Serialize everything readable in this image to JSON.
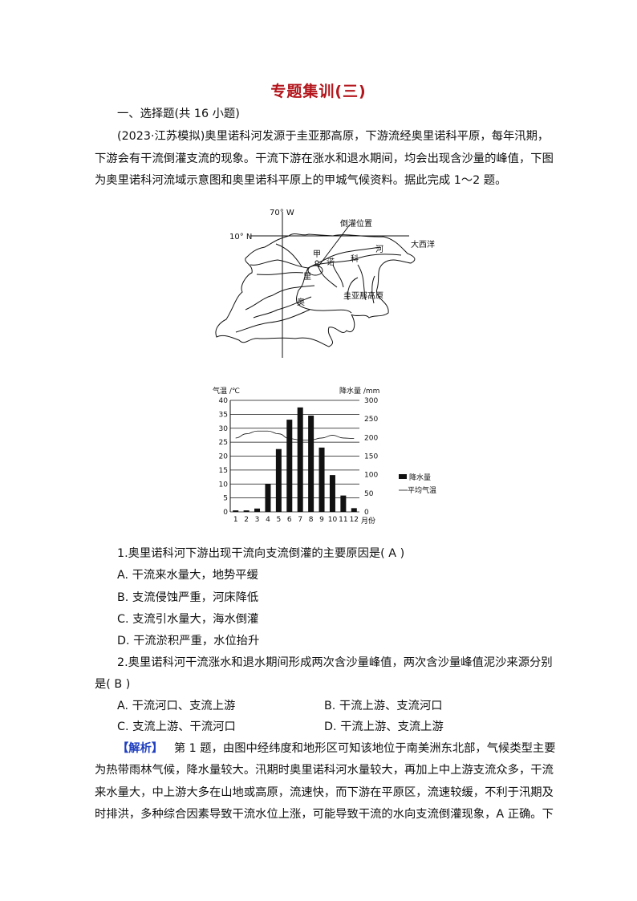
{
  "title": "专题集训(三)",
  "section": "一、选择题(共 16 小题)",
  "intro": [
    "(2023·江苏模拟)奥里诺科河发源于圭亚那高原，下游流经奥里诺科平原，每年汛期，",
    "下游会有干流倒灌支流的现象。干流下游在涨水和退水期间，均会出现含沙量的峰值，下图",
    "为奥里诺科河流域示意图和奥里诺科平原上的甲城气候资料。据此完成 1～2 题。"
  ],
  "map": {
    "lon_label": "70° W",
    "lat_label": "10° N",
    "backflow_label": "倒灌位置",
    "ocean_label": "大西洋",
    "city_label": "甲",
    "river_chars": [
      "奥",
      "里",
      "诺",
      "科",
      "河"
    ],
    "plateau_label": "圭亚那高原"
  },
  "chart_data": {
    "type": "bar",
    "left_axis_label": "气温 /℃",
    "right_axis_label": "降水量 /mm",
    "x_axis_label": "月份",
    "categories": [
      "1",
      "2",
      "3",
      "4",
      "5",
      "6",
      "7",
      "8",
      "9",
      "10",
      "11",
      "12"
    ],
    "left_ticks": [
      "40",
      "35",
      "30",
      "25",
      "20",
      "15",
      "10",
      "5",
      "0"
    ],
    "right_ticks": [
      "300",
      "250",
      "200",
      "150",
      "100",
      "50",
      "0"
    ],
    "ylim_left": [
      0,
      40
    ],
    "ylim_right": [
      0,
      300
    ],
    "grid": true,
    "legend_position": "right",
    "series": [
      {
        "name": "降水量",
        "kind": "bar",
        "axis": "right",
        "values": [
          4,
          4,
          9,
          75,
          169,
          248,
          281,
          259,
          173,
          99,
          44,
          10
        ]
      },
      {
        "name": "平均气温",
        "kind": "line",
        "axis": "left",
        "values": [
          26.5,
          28,
          29,
          29,
          28,
          26.3,
          25.8,
          25.8,
          26.5,
          27.5,
          26.5,
          26.3
        ]
      }
    ]
  },
  "q1": {
    "stem": "1.奥里诺科河下游出现干流向支流倒灌的主要原因是( A )",
    "options": [
      "A. 干流来水量大，地势平缓",
      "B. 支流侵蚀严重，河床降低",
      "C. 支流引水量大，海水倒灌",
      "D. 干流淤积严重，水位抬升"
    ]
  },
  "q2": {
    "stem1": "2.奥里诺科河干流涨水和退水期间形成两次含沙量峰值，两次含沙量峰值泥沙来源分别",
    "stem2": "是( B )",
    "options": [
      "A. 干流河口、支流上游",
      "B. 干流上游、支流河口",
      "C. 支流上游、干流河口",
      "D. 干流上游、支流上游"
    ]
  },
  "analysis": {
    "label": "【解析】",
    "lines": [
      "第 1 题，由图中经纬度和地形区可知该地位于南美洲东北部，气候类型主要",
      "为热带雨林气候，降水量较大。汛期时奥里诺科河水量较大，再加上中上游支流众多，干流",
      "来水量大，中上游大多在山地或高原，流速快，而下游在平原区，流速较缓，不利于汛期及",
      "时排洪，多种综合因素导致干流水位上涨，可能导致干流的水向支流倒灌现象，A 正确。下"
    ]
  },
  "colors": {
    "title": "#b3161c",
    "analysis_label": "#1f3fbf"
  }
}
